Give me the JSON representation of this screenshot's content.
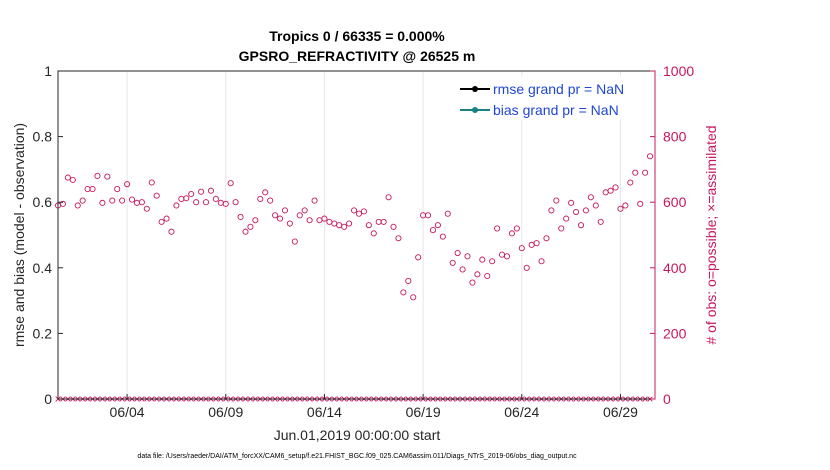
{
  "chart_data": {
    "type": "scatter",
    "title": "Tropics 0 / 66335 = 0.000%",
    "subtitle": "GPSRO_REFRACTIVITY @ 26525 m",
    "xlabel": "Jun.01,2019 00:00:00 start",
    "ylabel": "rmse and bias (model - observation)",
    "ylabel_right": "# of obs: o=possible; ×=assimilated",
    "xlim": [
      0.5,
      30.75
    ],
    "ylim": [
      0,
      1
    ],
    "ylim_right": [
      0,
      1000
    ],
    "x_tick_values": [
      4,
      9,
      14,
      19,
      24,
      29
    ],
    "x_tick_labels": [
      "06/04",
      "06/09",
      "06/14",
      "06/19",
      "06/24",
      "06/29"
    ],
    "y_ticks_left": [
      "0",
      "0.2",
      "0.4",
      "0.6",
      "0.8",
      "1"
    ],
    "y_ticks_right": [
      "0",
      "200",
      "400",
      "600",
      "800",
      "1000"
    ],
    "legend": [
      {
        "label": "rmse grand pr = NaN",
        "color": "#000000"
      },
      {
        "label": "bias grand pr = NaN",
        "color": "#1a8282"
      }
    ],
    "series": [
      {
        "name": "possible obs count",
        "axis": "right",
        "marker": "circle",
        "color": "#c8175f",
        "points": [
          [
            0.5,
            590
          ],
          [
            0.75,
            595
          ],
          [
            1.0,
            675
          ],
          [
            1.25,
            668
          ],
          [
            1.5,
            590
          ],
          [
            1.75,
            605
          ],
          [
            2.0,
            640
          ],
          [
            2.25,
            640
          ],
          [
            2.5,
            680
          ],
          [
            2.75,
            598
          ],
          [
            3.0,
            678
          ],
          [
            3.25,
            605
          ],
          [
            3.5,
            640
          ],
          [
            3.75,
            605
          ],
          [
            4.0,
            655
          ],
          [
            4.25,
            608
          ],
          [
            4.5,
            598
          ],
          [
            4.75,
            600
          ],
          [
            5.0,
            580
          ],
          [
            5.25,
            660
          ],
          [
            5.5,
            620
          ],
          [
            5.75,
            540
          ],
          [
            6.0,
            550
          ],
          [
            6.25,
            510
          ],
          [
            6.5,
            590
          ],
          [
            6.75,
            610
          ],
          [
            7.0,
            612
          ],
          [
            7.25,
            625
          ],
          [
            7.5,
            600
          ],
          [
            7.75,
            632
          ],
          [
            8.0,
            600
          ],
          [
            8.25,
            635
          ],
          [
            8.5,
            610
          ],
          [
            8.75,
            598
          ],
          [
            9.0,
            595
          ],
          [
            9.25,
            658
          ],
          [
            9.5,
            600
          ],
          [
            9.75,
            555
          ],
          [
            10.0,
            510
          ],
          [
            10.25,
            525
          ],
          [
            10.5,
            545
          ],
          [
            10.75,
            610
          ],
          [
            11.0,
            630
          ],
          [
            11.25,
            605
          ],
          [
            11.5,
            560
          ],
          [
            11.75,
            550
          ],
          [
            12.0,
            575
          ],
          [
            12.25,
            535
          ],
          [
            12.5,
            480
          ],
          [
            12.75,
            560
          ],
          [
            13.0,
            575
          ],
          [
            13.25,
            545
          ],
          [
            13.5,
            605
          ],
          [
            13.75,
            545
          ],
          [
            14.0,
            550
          ],
          [
            14.25,
            540
          ],
          [
            14.5,
            535
          ],
          [
            14.75,
            530
          ],
          [
            15.0,
            525
          ],
          [
            15.25,
            535
          ],
          [
            15.5,
            575
          ],
          [
            15.75,
            565
          ],
          [
            16.0,
            572
          ],
          [
            16.25,
            530
          ],
          [
            16.5,
            505
          ],
          [
            16.75,
            540
          ],
          [
            17.0,
            540
          ],
          [
            17.25,
            615
          ],
          [
            17.5,
            525
          ],
          [
            17.75,
            490
          ],
          [
            18.0,
            325
          ],
          [
            18.25,
            360
          ],
          [
            18.5,
            310
          ],
          [
            18.75,
            432
          ],
          [
            19.0,
            560
          ],
          [
            19.25,
            560
          ],
          [
            19.5,
            515
          ],
          [
            19.75,
            530
          ],
          [
            20.0,
            495
          ],
          [
            20.25,
            565
          ],
          [
            20.5,
            415
          ],
          [
            20.75,
            445
          ],
          [
            21.0,
            395
          ],
          [
            21.25,
            435
          ],
          [
            21.5,
            355
          ],
          [
            21.75,
            380
          ],
          [
            22.0,
            425
          ],
          [
            22.25,
            375
          ],
          [
            22.5,
            420
          ],
          [
            22.75,
            520
          ],
          [
            23.0,
            440
          ],
          [
            23.25,
            435
          ],
          [
            23.5,
            505
          ],
          [
            23.75,
            520
          ],
          [
            24.0,
            460
          ],
          [
            24.25,
            400
          ],
          [
            24.5,
            470
          ],
          [
            24.75,
            475
          ],
          [
            25.0,
            420
          ],
          [
            25.25,
            490
          ],
          [
            25.5,
            575
          ],
          [
            25.75,
            605
          ],
          [
            26.0,
            520
          ],
          [
            26.25,
            550
          ],
          [
            26.5,
            598
          ],
          [
            26.75,
            570
          ],
          [
            27.0,
            530
          ],
          [
            27.25,
            575
          ],
          [
            27.5,
            615
          ],
          [
            27.75,
            590
          ],
          [
            28.0,
            540
          ],
          [
            28.25,
            630
          ],
          [
            28.5,
            635
          ],
          [
            28.75,
            645
          ],
          [
            29.0,
            580
          ],
          [
            29.25,
            590
          ],
          [
            29.5,
            660
          ],
          [
            29.75,
            690
          ],
          [
            30.0,
            595
          ],
          [
            30.25,
            690
          ],
          [
            30.5,
            740
          ]
        ]
      },
      {
        "name": "assimilated obs count",
        "axis": "right",
        "marker": "x",
        "color": "#c8175f",
        "constant_value": 0
      }
    ]
  },
  "footer": "data file: /Users/raeder/DAI/ATM_forcXX/CAM6_setup/f.e21.FHIST_BGC.f09_025.CAM6assim.011/Diags_NTrS_2019-06/obs_diag_output.nc"
}
